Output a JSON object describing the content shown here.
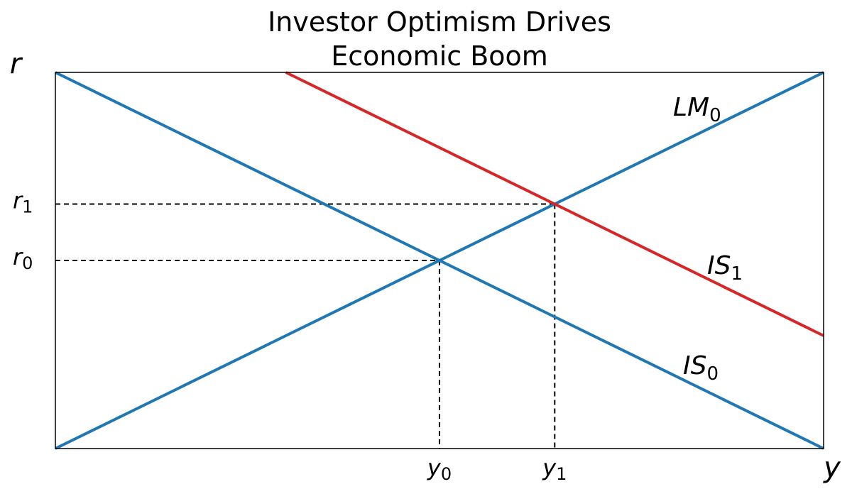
{
  "title_lines": [
    "Investor Optimism Drives",
    "Economic Boom"
  ],
  "x_axis_letter": "y",
  "y_axis_letter": "r",
  "colors": {
    "original_curves": "#1f77b4",
    "shifted_is": "#d62728",
    "guides": "#000000",
    "frame": "#000000"
  },
  "chart_data": {
    "type": "line",
    "title": "Investor Optimism Drives Economic Boom",
    "xlabel": "y",
    "ylabel": "r",
    "xlim": [
      0,
      10
    ],
    "ylim": [
      0,
      10
    ],
    "grid": false,
    "ticks_shown_as_numbers": false,
    "series": [
      {
        "name": "LM",
        "subscript": "0",
        "color": "#1f77b4",
        "x": [
          0,
          10
        ],
        "y": [
          0,
          10
        ]
      },
      {
        "name": "IS",
        "subscript": "0",
        "color": "#1f77b4",
        "x": [
          0,
          10
        ],
        "y": [
          10,
          0
        ]
      },
      {
        "name": "IS",
        "subscript": "1",
        "color": "#d62728",
        "x": [
          3,
          10
        ],
        "y": [
          10,
          3
        ]
      }
    ],
    "equilibria": [
      {
        "x_label": "y",
        "x_sub": "0",
        "y_label": "r",
        "y_sub": "0",
        "x": 5,
        "y": 5
      },
      {
        "x_label": "y",
        "x_sub": "1",
        "y_label": "r",
        "y_sub": "1",
        "x": 6.5,
        "y": 6.5
      }
    ]
  }
}
